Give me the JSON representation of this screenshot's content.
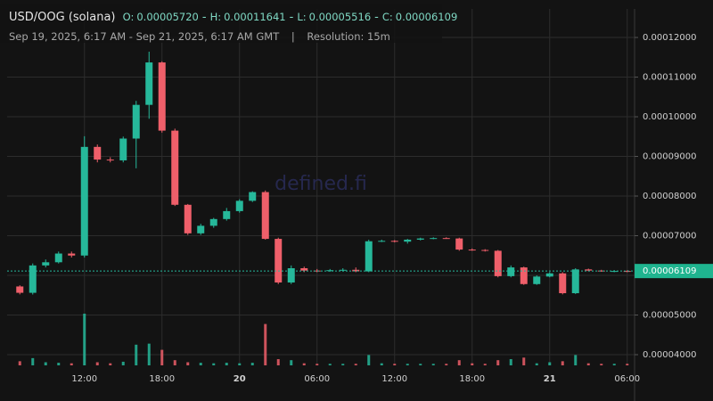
{
  "chart_data": {
    "type": "candlestick",
    "title": "USD/OOG (solana)",
    "summary": [
      {
        "key": "O:",
        "text": "0.00005720"
      },
      {
        "key": "H:",
        "text": "0.00011641"
      },
      {
        "key": "L:",
        "text": "0.00005516"
      },
      {
        "key": "C:",
        "text": "0.00006109"
      }
    ],
    "summary_separator": "-",
    "range": "Sep 19, 2025, 6:17 AM - Sep 21, 2025, 6:17 AM GMT",
    "range_separator": "|",
    "resolution": "Resolution: 15m",
    "watermark": "defined.fi",
    "categories": [
      null,
      null,
      null,
      null,
      null,
      "12:00",
      null,
      null,
      null,
      null,
      null,
      "18:00",
      null,
      null,
      null,
      null,
      null,
      "20",
      null,
      null,
      null,
      null,
      null,
      "06:00",
      null,
      null,
      null,
      null,
      null,
      "12:00",
      null,
      null,
      null,
      null,
      null,
      "18:00",
      null,
      null,
      null,
      null,
      null,
      "21",
      null,
      null,
      null,
      null,
      null,
      "06:00"
    ],
    "open": [
      5.72e-05,
      5.56e-05,
      6.25e-05,
      6.33e-05,
      6.55e-05,
      6.5e-05,
      9.24e-05,
      8.92e-05,
      8.9e-05,
      9.45e-05,
      0.000103,
      0.0001137,
      9.65e-05,
      7.78e-05,
      7.06e-05,
      7.25e-05,
      7.42e-05,
      7.62e-05,
      7.88e-05,
      8.1e-05,
      6.92e-05,
      5.82e-05,
      6.18e-05,
      6.12e-05,
      6.11e-05,
      6.13e-05,
      6.14e-05,
      6.1e-05,
      6.86e-05,
      6.87e-05,
      6.85e-05,
      6.9e-05,
      6.93e-05,
      6.94e-05,
      6.93e-05,
      6.65e-05,
      6.64e-05,
      6.62e-05,
      5.98e-05,
      6.2e-05,
      5.78e-05,
      5.97e-05,
      6.05e-05,
      5.55e-05,
      6.15e-05,
      6.12e-05,
      6.1e-05,
      6.11e-05
    ],
    "high": [
      5.75e-05,
      6.3e-05,
      6.4e-05,
      6.6e-05,
      6.6e-05,
      9.51e-05,
      9.3e-05,
      8.98e-05,
      9.5e-05,
      0.000104,
      0.00011641,
      0.000114,
      9.7e-05,
      7.8e-05,
      7.3e-05,
      7.45e-05,
      7.7e-05,
      7.92e-05,
      8.12e-05,
      8.14e-05,
      6.95e-05,
      6.25e-05,
      6.22e-05,
      6.16e-05,
      6.16e-05,
      6.18e-05,
      6.2e-05,
      6.9e-05,
      6.9e-05,
      6.89e-05,
      6.92e-05,
      6.95e-05,
      6.96e-05,
      6.96e-05,
      6.95e-05,
      6.68e-05,
      6.66e-05,
      6.64e-05,
      6.25e-05,
      6.22e-05,
      6e-05,
      6.08e-05,
      6.08e-05,
      6.18e-05,
      6.17e-05,
      6.14e-05,
      6.13e-05,
      6.13e-05
    ],
    "low": [
      5.52e-05,
      5.516e-05,
      6.2e-05,
      6.3e-05,
      6.45e-05,
      6.45e-05,
      8.85e-05,
      8.85e-05,
      8.85e-05,
      8.7e-05,
      9.95e-05,
      9.6e-05,
      7.75e-05,
      7.02e-05,
      7.02e-05,
      7.2e-05,
      7.38e-05,
      7.58e-05,
      7.85e-05,
      6.9e-05,
      5.78e-05,
      5.78e-05,
      6.08e-05,
      6.08e-05,
      6.09e-05,
      6.1e-05,
      6.08e-05,
      6.08e-05,
      6.84e-05,
      6.83e-05,
      6.8e-05,
      6.88e-05,
      6.91e-05,
      6.92e-05,
      6.62e-05,
      6.62e-05,
      6.6e-05,
      5.95e-05,
      5.95e-05,
      5.76e-05,
      5.76e-05,
      5.95e-05,
      5.52e-05,
      5.53e-05,
      6.1e-05,
      6.09e-05,
      6.08e-05,
      6.08e-05
    ],
    "close": [
      5.56e-05,
      6.25e-05,
      6.33e-05,
      6.55e-05,
      6.5e-05,
      9.24e-05,
      8.92e-05,
      8.9e-05,
      9.45e-05,
      0.000103,
      0.0001137,
      9.65e-05,
      7.78e-05,
      7.06e-05,
      7.25e-05,
      7.42e-05,
      7.62e-05,
      7.88e-05,
      8.1e-05,
      6.92e-05,
      5.82e-05,
      6.18e-05,
      6.12e-05,
      6.11e-05,
      6.13e-05,
      6.14e-05,
      6.1e-05,
      6.86e-05,
      6.87e-05,
      6.85e-05,
      6.9e-05,
      6.93e-05,
      6.94e-05,
      6.93e-05,
      6.65e-05,
      6.64e-05,
      6.62e-05,
      5.98e-05,
      6.2e-05,
      5.78e-05,
      5.97e-05,
      6.05e-05,
      5.55e-05,
      6.15e-05,
      6.12e-05,
      6.1e-05,
      6.11e-05,
      6.109e-05
    ],
    "volume": [
      8,
      14,
      6,
      5,
      4,
      100,
      6,
      4,
      7,
      40,
      42,
      30,
      10,
      6,
      5,
      4,
      5,
      4,
      5,
      80,
      12,
      10,
      4,
      3,
      3,
      3,
      3,
      20,
      4,
      3,
      3,
      3,
      3,
      3,
      10,
      4,
      3,
      10,
      12,
      15,
      4,
      6,
      8,
      20,
      4,
      3,
      3,
      3
    ],
    "up_color": "#26b89a",
    "down_color": "#ef5f6a",
    "ylim": [
      3.73e-05,
      0.0001272
    ],
    "yticks": [
      {
        "value": 4e-05,
        "label": "0.00004000"
      },
      {
        "value": 5e-05,
        "label": "0.00005000"
      },
      {
        "value": 6e-05,
        "label": "0.00006000"
      },
      {
        "value": 7e-05,
        "label": "0.00007000"
      },
      {
        "value": 8e-05,
        "label": "0.00008000"
      },
      {
        "value": 9e-05,
        "label": "0.00009000"
      },
      {
        "value": 0.0001,
        "label": "0.00010000"
      },
      {
        "value": 0.00011,
        "label": "0.00011000"
      },
      {
        "value": 0.00012,
        "label": "0.00012000"
      }
    ],
    "last_price": {
      "value": 6.109e-05,
      "label": "0.00006109"
    },
    "grid": true
  }
}
